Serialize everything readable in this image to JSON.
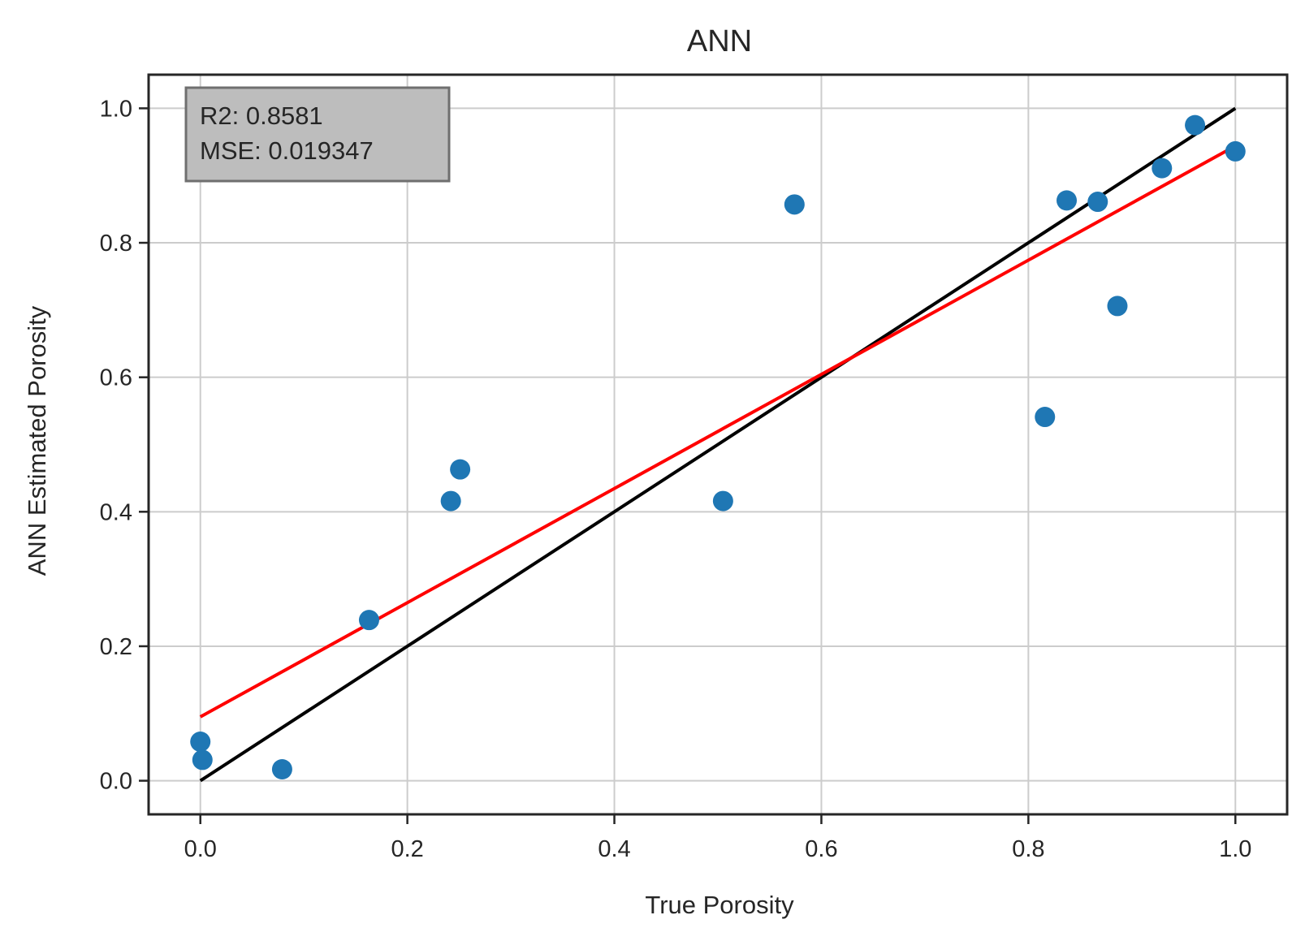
{
  "chart_data": {
    "type": "scatter",
    "title": "ANN",
    "xlabel": "True Porosity",
    "ylabel": "ANN Estimated Porosity",
    "xlim": [
      -0.05,
      1.05
    ],
    "ylim": [
      -0.05,
      1.05
    ],
    "xticks": [
      "0.0",
      "0.2",
      "0.4",
      "0.6",
      "0.8",
      "1.0"
    ],
    "yticks": [
      "0.0",
      "0.2",
      "0.4",
      "0.6",
      "0.8",
      "1.0"
    ],
    "grid": true,
    "annotation": {
      "lines": [
        "R2: 0.8581",
        "MSE: 0.019347"
      ],
      "placement": "top-left"
    },
    "series": [
      {
        "kind": "scatter",
        "color": "#1f77b4",
        "points": [
          {
            "x": 0.0,
            "y": 0.058
          },
          {
            "x": 0.002,
            "y": 0.031
          },
          {
            "x": 0.079,
            "y": 0.017
          },
          {
            "x": 0.163,
            "y": 0.239
          },
          {
            "x": 0.242,
            "y": 0.416
          },
          {
            "x": 0.251,
            "y": 0.463
          },
          {
            "x": 0.505,
            "y": 0.416
          },
          {
            "x": 0.574,
            "y": 0.857
          },
          {
            "x": 0.816,
            "y": 0.541
          },
          {
            "x": 0.837,
            "y": 0.863
          },
          {
            "x": 0.867,
            "y": 0.861
          },
          {
            "x": 0.886,
            "y": 0.706
          },
          {
            "x": 0.929,
            "y": 0.911
          },
          {
            "x": 0.961,
            "y": 0.975
          },
          {
            "x": 1.0,
            "y": 0.936
          }
        ]
      },
      {
        "kind": "line",
        "color": "#000000",
        "points": [
          {
            "x": 0.0,
            "y": 0.0
          },
          {
            "x": 1.0,
            "y": 1.0
          }
        ]
      },
      {
        "kind": "line",
        "color": "#ff0000",
        "points": [
          {
            "x": 0.0,
            "y": 0.095
          },
          {
            "x": 1.0,
            "y": 0.944
          }
        ]
      }
    ]
  }
}
